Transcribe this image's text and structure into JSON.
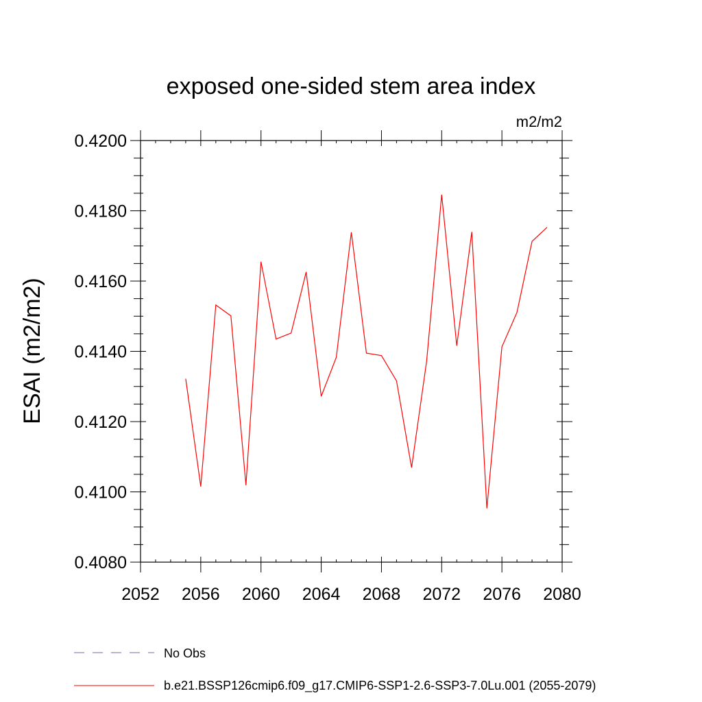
{
  "chart_data": {
    "type": "line",
    "title": "exposed one-sided stem area index",
    "units": "m2/m2",
    "xlabel": "",
    "ylabel": "ESAI  (m2/m2)",
    "xlim": [
      2052,
      2080
    ],
    "ylim": [
      0.408,
      0.42
    ],
    "x_ticks": [
      2052,
      2056,
      2060,
      2064,
      2068,
      2072,
      2076,
      2080
    ],
    "x_tick_labels": [
      "2052",
      "2056",
      "2060",
      "2064",
      "2068",
      "2072",
      "2076",
      "2080"
    ],
    "y_ticks": [
      0.408,
      0.41,
      0.412,
      0.414,
      0.416,
      0.418,
      0.42
    ],
    "y_tick_labels": [
      "0.4080",
      "0.4100",
      "0.4120",
      "0.4140",
      "0.4160",
      "0.4180",
      "0.4200"
    ],
    "x_minor_step": 1,
    "y_minor_step": 0.0005,
    "grid": false,
    "legend_position": "bottom",
    "series": [
      {
        "name": "b.e21.BSSP126cmip6.f09_g17.CMIP6-SSP1-2.6-SSP3-7.0Lu.001 (2055-2079)",
        "color": "#ff0000",
        "dash": "solid",
        "x": [
          2055,
          2056,
          2057,
          2058,
          2059,
          2060,
          2061,
          2062,
          2063,
          2064,
          2065,
          2066,
          2067,
          2068,
          2069,
          2070,
          2071,
          2072,
          2073,
          2074,
          2075,
          2076,
          2077,
          2078,
          2079
        ],
        "values": [
          0.41322,
          0.41015,
          0.41532,
          0.41501,
          0.41019,
          0.41655,
          0.41435,
          0.41452,
          0.41626,
          0.41272,
          0.41383,
          0.41739,
          0.41395,
          0.41388,
          0.41316,
          0.41069,
          0.41372,
          0.41846,
          0.41416,
          0.4174,
          0.40953,
          0.41413,
          0.41511,
          0.41713,
          0.41753
        ]
      }
    ],
    "legend": [
      {
        "label": "No Obs",
        "color": "#6a6ab5",
        "dash": "dashed"
      },
      {
        "label": "b.e21.BSSP126cmip6.f09_g17.CMIP6-SSP1-2.6-SSP3-7.0Lu.001 (2055-2079)",
        "color": "#ff0000",
        "dash": "solid"
      }
    ]
  }
}
